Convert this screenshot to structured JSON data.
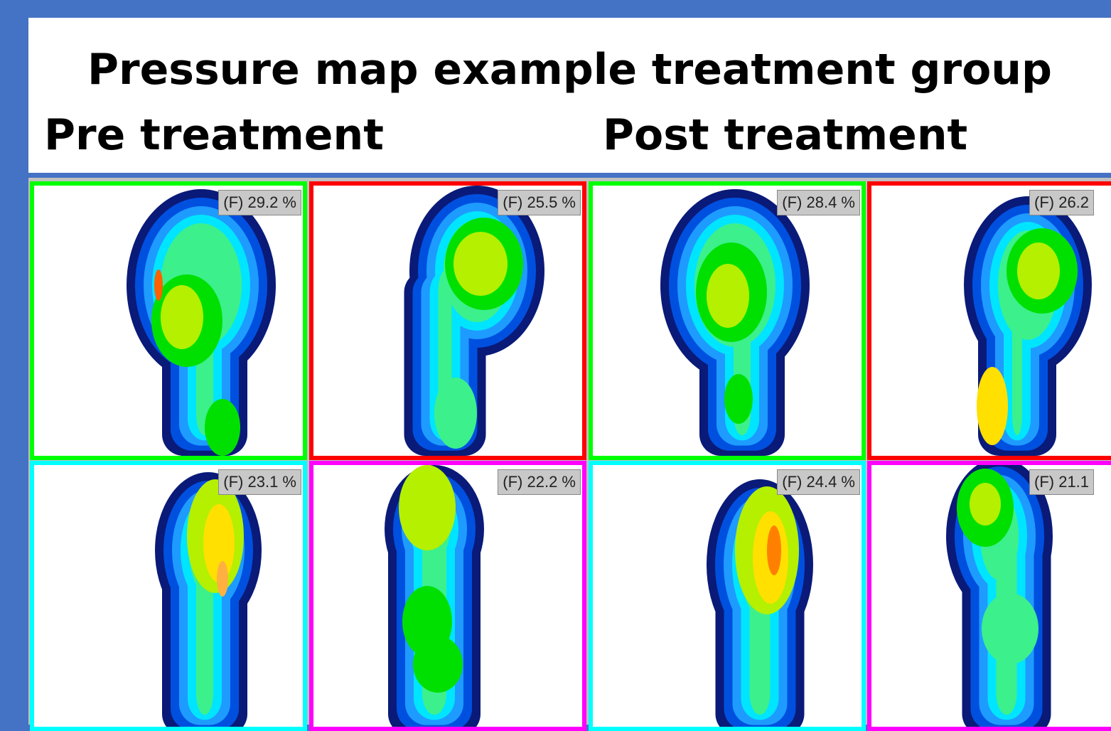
{
  "header": {
    "title": "Pressure map example treatment group",
    "left_heading": "Pre treatment",
    "right_heading": "Post treatment"
  },
  "panels": [
    {
      "label": "(F) 29.2 %"
    },
    {
      "label": "(F) 25.5 %"
    },
    {
      "label": "(F) 28.4 %"
    },
    {
      "label": "(F) 26.2"
    },
    {
      "label": "(F) 23.1 %"
    },
    {
      "label": "(F) 22.2 %"
    },
    {
      "label": "(F) 24.4 %"
    },
    {
      "label": "(F) 21.1"
    }
  ]
}
